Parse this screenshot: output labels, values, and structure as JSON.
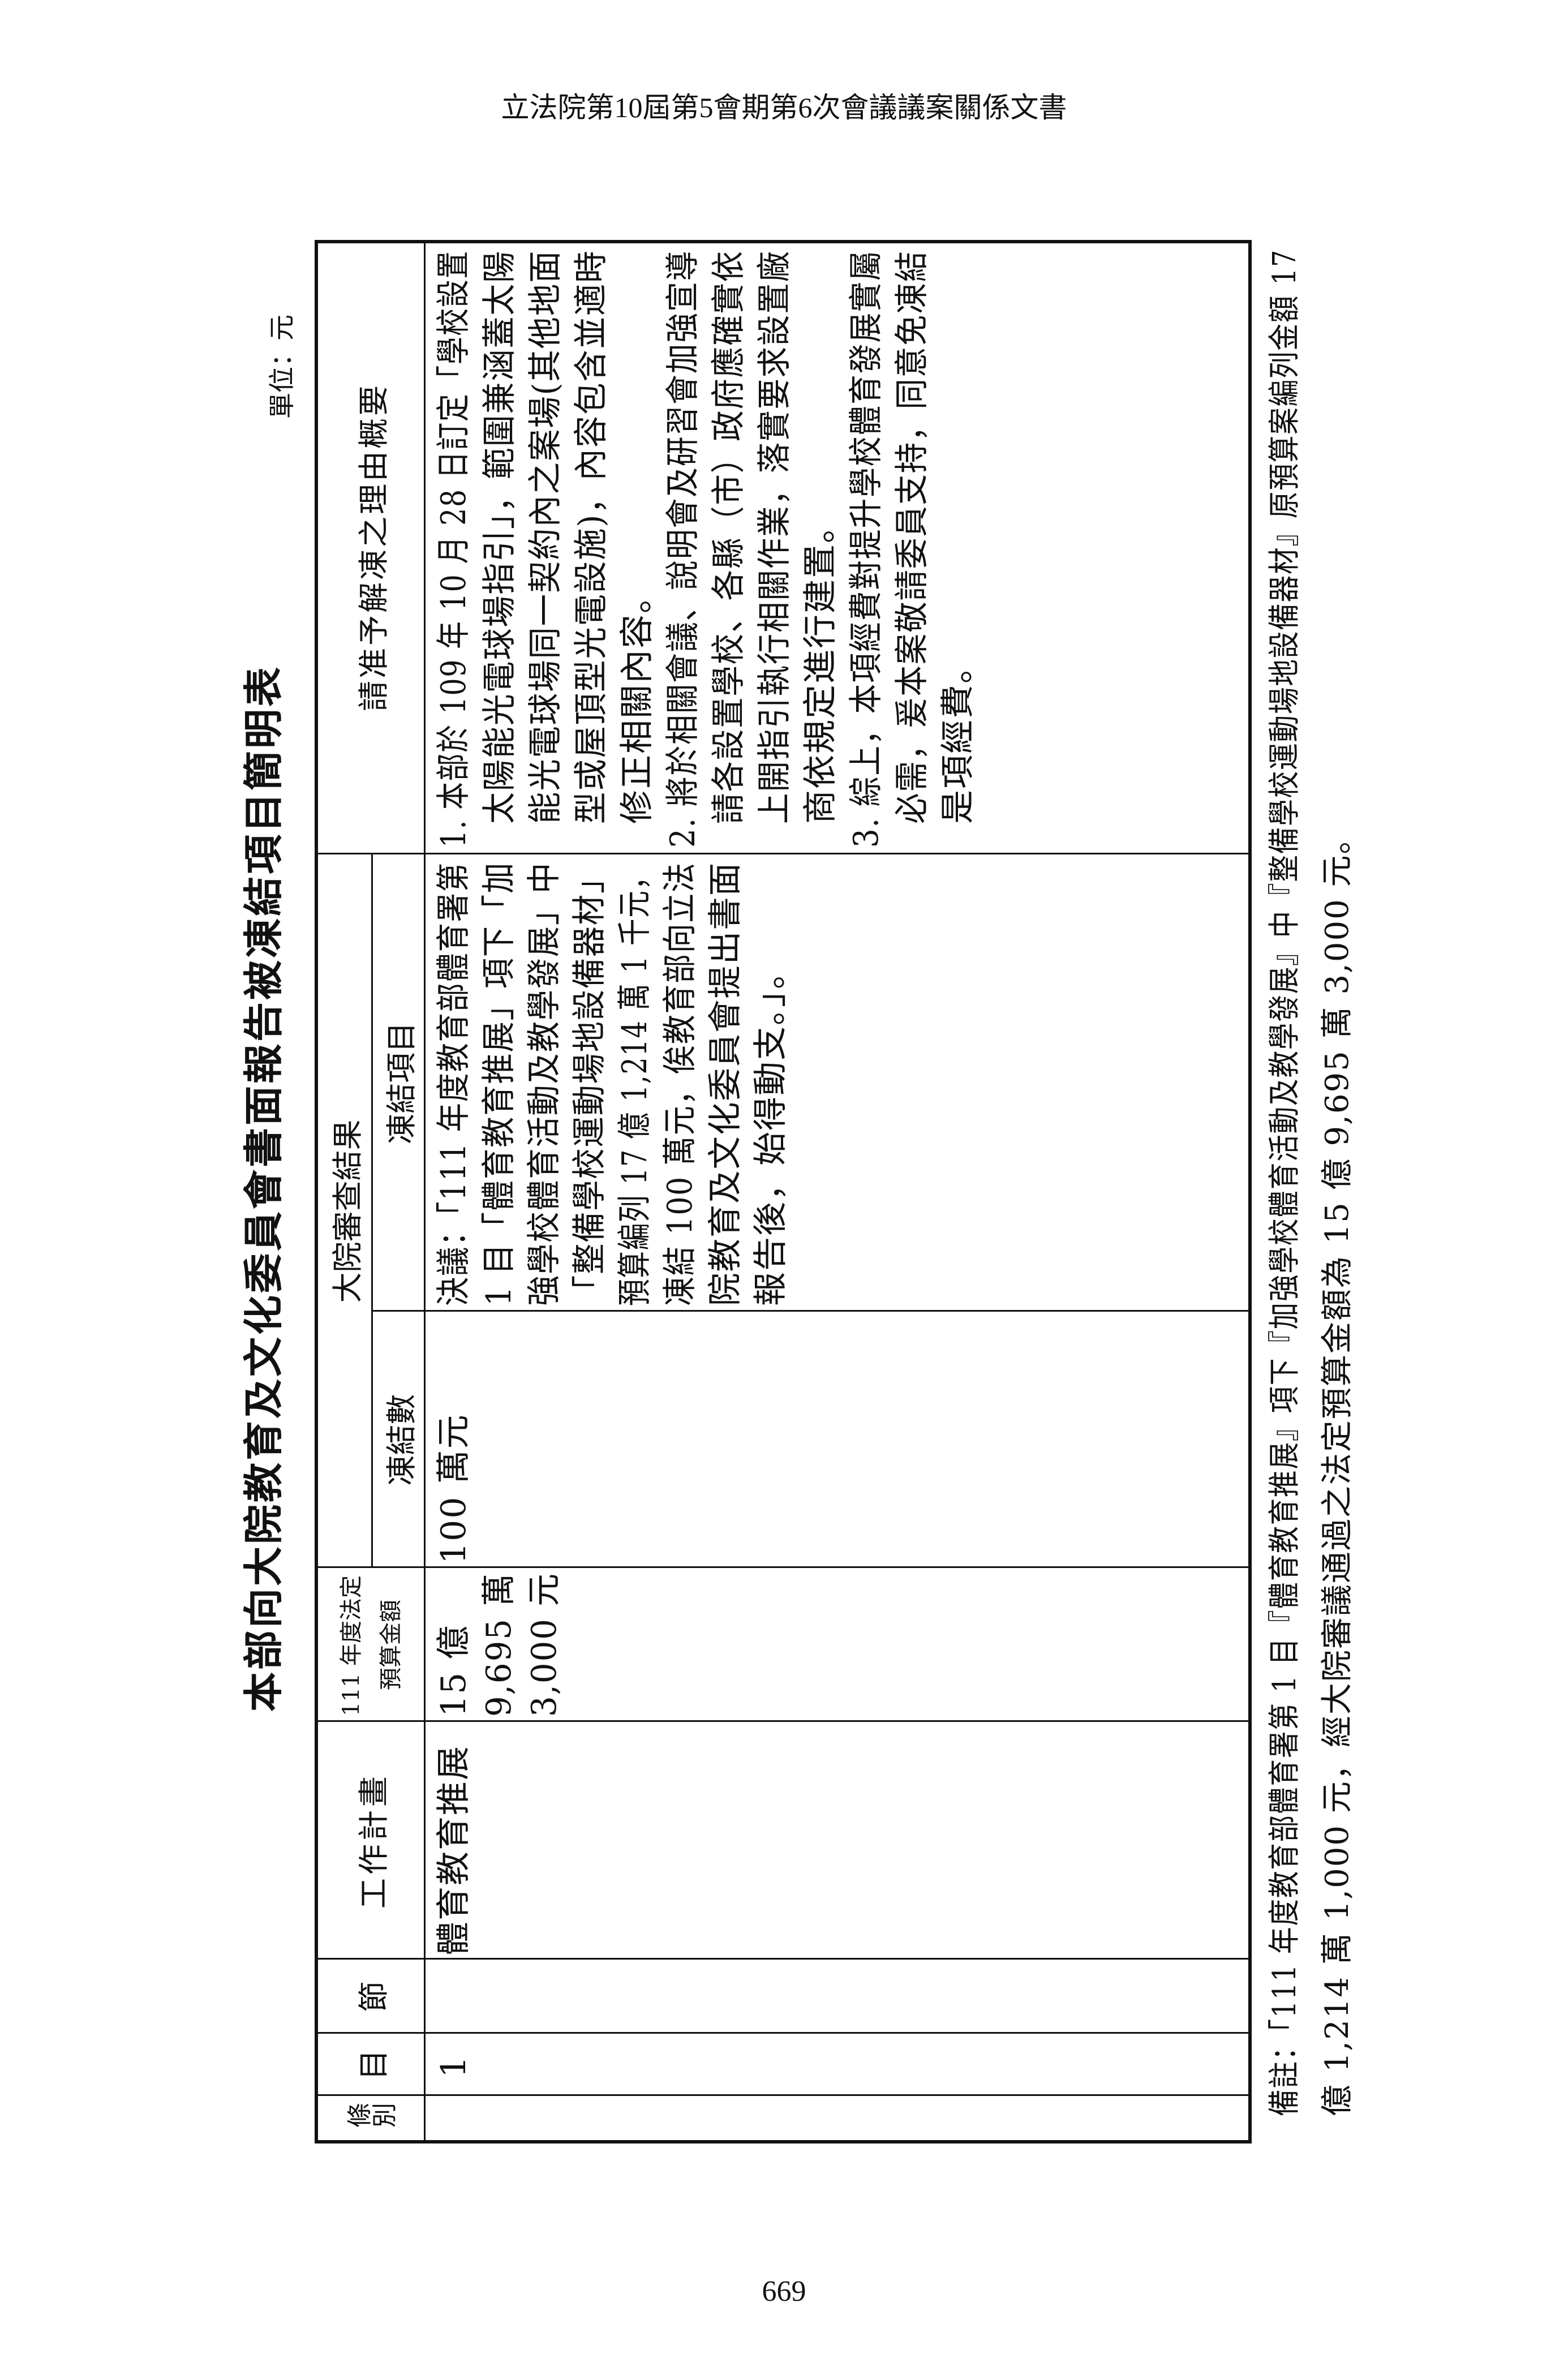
{
  "running_header": "立法院第10屆第5會期第6次會議議案關係文書",
  "page_number": "669",
  "title": "本部向大院教育及文化委員會書面報告被凍結項目簡明表",
  "unit": "單位：元",
  "table": {
    "headers": {
      "article": "條別",
      "item": "目",
      "section": "節",
      "work_plan": "工作計畫",
      "budget_line1": "111 年度法定",
      "budget_line2": "預算金額",
      "review_group": "大院審查結果",
      "frozen_amount": "凍結數",
      "frozen_item": "凍結項目",
      "reason": "請准予解凍之理由概要"
    },
    "row": {
      "article": "",
      "item": "1",
      "section": "",
      "work_plan": "體育教育推展",
      "budget_lines": [
        "15 億",
        "9,695 萬",
        "3,000 元"
      ],
      "frozen_amount": "100 萬元",
      "frozen_item_lines": [
        "決議：「111 年度教育部體育署第",
        "1 目「體育教育推展」項下「加",
        "強學校體育活動及教學發展」中",
        "「整備學校運動場地設備器材」",
        "預算編列 17 億 1,214 萬 1 千元，",
        "凍結 100 萬元，俟教育部向立法",
        "院教育及文化委員會提出書面",
        "報告後，始得動支。」。"
      ],
      "reason_lines": [
        "1. 本部於 109 年 10 月 28 日訂定「學校設置",
        "太陽能光電球場指引」，範圍兼涵蓋太陽",
        "能光電球場同一契約內之案場(其他地面",
        "型或屋頂型光電設施)，內容包含並適時",
        "修正相關內容。",
        "2. 將於相關會議、說明會及研習會加強宣導",
        "請各設置學校、各縣（市）政府應確實依",
        "上開指引執行相關作業，落實要求設置廠",
        "商依規定進行建置。",
        "3. 綜上，本項經費對提升學校體育發展實屬",
        "必需，爰本案敬請委員支持，同意免凍結",
        "是項經費。"
      ]
    }
  },
  "note_lines": [
    "備註：「111 年度教育部體育署第 1 目『體育教育推展』項下『加強學校體育活動及教學發展』中『整備學校運動場地設備器材』原預算案編列金額 17",
    "億 1,214 萬 1,000 元，經大院審議通過之法定預算金額為 15 億 9,695 萬 3,000 元。"
  ]
}
